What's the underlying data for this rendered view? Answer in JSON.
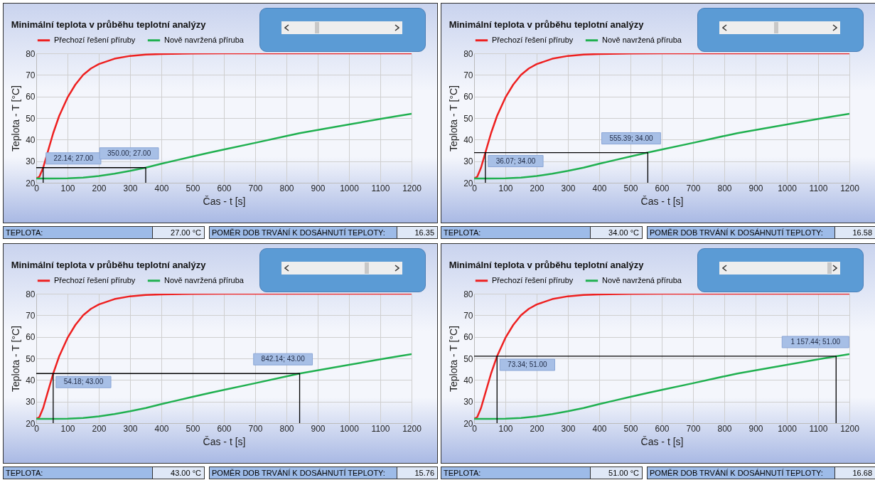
{
  "chart_data": [
    {
      "type": "line",
      "title": "Minimální teplota v průběhu teplotní analýzy",
      "xlabel": "Čas - t [s]",
      "ylabel": "Teplota - T [°C]",
      "xlim": [
        0,
        1200
      ],
      "ylim": [
        20,
        80
      ],
      "xticks": [
        0,
        100,
        200,
        300,
        400,
        500,
        600,
        700,
        800,
        900,
        1000,
        1100,
        1200
      ],
      "yticks": [
        20,
        30,
        40,
        50,
        60,
        70,
        80
      ],
      "grid": true,
      "legend": "top",
      "series": [
        {
          "name": "Přechozí řešení příruby",
          "color": "#ee2020",
          "x": [
            0,
            10,
            22.14,
            36.07,
            54.18,
            73.34,
            100,
            125,
            150,
            175,
            200,
            250,
            300,
            350,
            400,
            500,
            600,
            800,
            1000,
            1200
          ],
          "values": [
            22,
            22.8,
            27,
            34,
            43,
            51,
            59.5,
            65.5,
            70,
            73,
            75,
            77.5,
            78.8,
            79.4,
            79.7,
            79.9,
            80,
            80,
            80,
            80
          ]
        },
        {
          "name": "Nově navržená příruba",
          "color": "#20b050",
          "x": [
            0,
            50,
            100,
            150,
            200,
            250,
            300,
            350,
            400,
            450,
            500,
            555.39,
            600,
            700,
            800,
            842.14,
            900,
            1000,
            1100,
            1157.44,
            1200
          ],
          "values": [
            22,
            22,
            22.1,
            22.4,
            23.1,
            24.2,
            25.5,
            27,
            28.8,
            30.5,
            32.2,
            34,
            35.4,
            38.5,
            41.7,
            43,
            44.5,
            47,
            49.6,
            51,
            52
          ]
        },
        {
          "color": "#000000",
          "x": [
            0,
            350,
            350
          ],
          "values": [
            27,
            27,
            20
          ]
        },
        {
          "color": "#000000",
          "x": [
            22.14,
            22.14
          ],
          "values": [
            20,
            27
          ]
        }
      ],
      "annotations": [
        {
          "text": "22.14; 27.00",
          "x": 22.14,
          "y": 27
        },
        {
          "text": "350.00; 27.00",
          "x": 350,
          "y": 27
        },
        "TEPLOTA:",
        "27.00 °C",
        "POMĚR DOB TRVÁNÍ K DOSÁHNUTÍ TEPLOTY:",
        "16.35"
      ]
    },
    {
      "type": "line",
      "title": "Minimální teplota v průběhu teplotní analýzy",
      "xlabel": "Čas - t [s]",
      "ylabel": "Teplota - T [°C]",
      "xlim": [
        0,
        1200
      ],
      "ylim": [
        20,
        80
      ],
      "xticks": [
        0,
        100,
        200,
        300,
        400,
        500,
        600,
        700,
        800,
        900,
        1000,
        1100,
        1200
      ],
      "yticks": [
        20,
        30,
        40,
        50,
        60,
        70,
        80
      ],
      "grid": true,
      "legend": "top",
      "series": [
        {
          "name": "Přechozí řešení příruby",
          "color": "#ee2020",
          "x": [
            0,
            10,
            22.14,
            36.07,
            54.18,
            73.34,
            100,
            125,
            150,
            175,
            200,
            250,
            300,
            350,
            400,
            500,
            600,
            800,
            1000,
            1200
          ],
          "values": [
            22,
            22.8,
            27,
            34,
            43,
            51,
            59.5,
            65.5,
            70,
            73,
            75,
            77.5,
            78.8,
            79.4,
            79.7,
            79.9,
            80,
            80,
            80,
            80
          ]
        },
        {
          "name": "Nově navržená příruba",
          "color": "#20b050",
          "x": [
            0,
            50,
            100,
            150,
            200,
            250,
            300,
            350,
            400,
            450,
            500,
            555.39,
            600,
            700,
            800,
            842.14,
            900,
            1000,
            1100,
            1157.44,
            1200
          ],
          "values": [
            22,
            22,
            22.1,
            22.4,
            23.1,
            24.2,
            25.5,
            27,
            28.8,
            30.5,
            32.2,
            34,
            35.4,
            38.5,
            41.7,
            43,
            44.5,
            47,
            49.6,
            51,
            52
          ]
        },
        {
          "color": "#000000",
          "x": [
            0,
            555.39,
            555.39
          ],
          "values": [
            34,
            34,
            20
          ]
        },
        {
          "color": "#000000",
          "x": [
            36.07,
            36.07
          ],
          "values": [
            20,
            34
          ]
        }
      ],
      "annotations": [
        {
          "text": "36.07; 34.00",
          "x": 36.07,
          "y": 34
        },
        {
          "text": "555.39; 34.00",
          "x": 555.39,
          "y": 34
        },
        "TEPLOTA:",
        "34.00 °C",
        "POMĚR DOB TRVÁNÍ K DOSÁHNUTÍ TEPLOTY:",
        "16.58"
      ]
    },
    {
      "type": "line",
      "title": "Minimální teplota v průběhu teplotní analýzy",
      "xlabel": "Čas - t [s]",
      "ylabel": "Teplota - T [°C]",
      "xlim": [
        0,
        1200
      ],
      "ylim": [
        20,
        80
      ],
      "xticks": [
        0,
        100,
        200,
        300,
        400,
        500,
        600,
        700,
        800,
        900,
        1000,
        1100,
        1200
      ],
      "yticks": [
        20,
        30,
        40,
        50,
        60,
        70,
        80
      ],
      "grid": true,
      "legend": "top",
      "series": [
        {
          "name": "Přechozí řešení příruby",
          "color": "#ee2020",
          "x": [
            0,
            10,
            22.14,
            36.07,
            54.18,
            73.34,
            100,
            125,
            150,
            175,
            200,
            250,
            300,
            350,
            400,
            500,
            600,
            800,
            1000,
            1200
          ],
          "values": [
            22,
            22.8,
            27,
            34,
            43,
            51,
            59.5,
            65.5,
            70,
            73,
            75,
            77.5,
            78.8,
            79.4,
            79.7,
            79.9,
            80,
            80,
            80,
            80
          ]
        },
        {
          "name": "Nově navržená příruba",
          "color": "#20b050",
          "x": [
            0,
            50,
            100,
            150,
            200,
            250,
            300,
            350,
            400,
            450,
            500,
            555.39,
            600,
            700,
            800,
            842.14,
            900,
            1000,
            1100,
            1157.44,
            1200
          ],
          "values": [
            22,
            22,
            22.1,
            22.4,
            23.1,
            24.2,
            25.5,
            27,
            28.8,
            30.5,
            32.2,
            34,
            35.4,
            38.5,
            41.7,
            43,
            44.5,
            47,
            49.6,
            51,
            52
          ]
        },
        {
          "color": "#000000",
          "x": [
            0,
            842.14,
            842.14
          ],
          "values": [
            43,
            43,
            20
          ]
        },
        {
          "color": "#000000",
          "x": [
            54.18,
            54.18
          ],
          "values": [
            20,
            43
          ]
        }
      ],
      "annotations": [
        {
          "text": "54.18; 43.00",
          "x": 54.18,
          "y": 43
        },
        {
          "text": "842.14; 43.00",
          "x": 842.14,
          "y": 43
        },
        "TEPLOTA:",
        "43.00 °C",
        "POMĚR DOB TRVÁNÍ K DOSÁHNUTÍ TEPLOTY:",
        "15.76"
      ]
    },
    {
      "type": "line",
      "title": "Minimální teplota v průběhu teplotní analýzy",
      "xlabel": "Čas - t [s]",
      "ylabel": "Teplota - T [°C]",
      "xlim": [
        0,
        1200
      ],
      "ylim": [
        20,
        80
      ],
      "xticks": [
        0,
        100,
        200,
        300,
        400,
        500,
        600,
        700,
        800,
        900,
        1000,
        1100,
        1200
      ],
      "yticks": [
        20,
        30,
        40,
        50,
        60,
        70,
        80
      ],
      "grid": true,
      "legend": "top",
      "series": [
        {
          "name": "Přechozí řešení příruby",
          "color": "#ee2020",
          "x": [
            0,
            10,
            22.14,
            36.07,
            54.18,
            73.34,
            100,
            125,
            150,
            175,
            200,
            250,
            300,
            350,
            400,
            500,
            600,
            800,
            1000,
            1200
          ],
          "values": [
            22,
            22.8,
            27,
            34,
            43,
            51,
            59.5,
            65.5,
            70,
            73,
            75,
            77.5,
            78.8,
            79.4,
            79.7,
            79.9,
            80,
            80,
            80,
            80
          ]
        },
        {
          "name": "Nově navržená příruba",
          "color": "#20b050",
          "x": [
            0,
            50,
            100,
            150,
            200,
            250,
            300,
            350,
            400,
            450,
            500,
            555.39,
            600,
            700,
            800,
            842.14,
            900,
            1000,
            1100,
            1157.44,
            1200
          ],
          "values": [
            22,
            22,
            22.1,
            22.4,
            23.1,
            24.2,
            25.5,
            27,
            28.8,
            30.5,
            32.2,
            34,
            35.4,
            38.5,
            41.7,
            43,
            44.5,
            47,
            49.6,
            51,
            52
          ]
        },
        {
          "color": "#000000",
          "x": [
            0,
            1157.44,
            1157.44
          ],
          "values": [
            51,
            51,
            20
          ]
        },
        {
          "color": "#000000",
          "x": [
            73.34,
            73.34
          ],
          "values": [
            20,
            51
          ]
        }
      ],
      "annotations": [
        {
          "text": "73.34; 51.00",
          "x": 73.34,
          "y": 51
        },
        {
          "text": "1 157.44; 51.00",
          "x": 1157.44,
          "y": 51
        },
        "TEPLOTA:",
        "51.00 °C",
        "POMĚR DOB TRVÁNÍ K DOSÁHNUTÍ TEPLOTY:",
        "16.68"
      ]
    }
  ]
}
